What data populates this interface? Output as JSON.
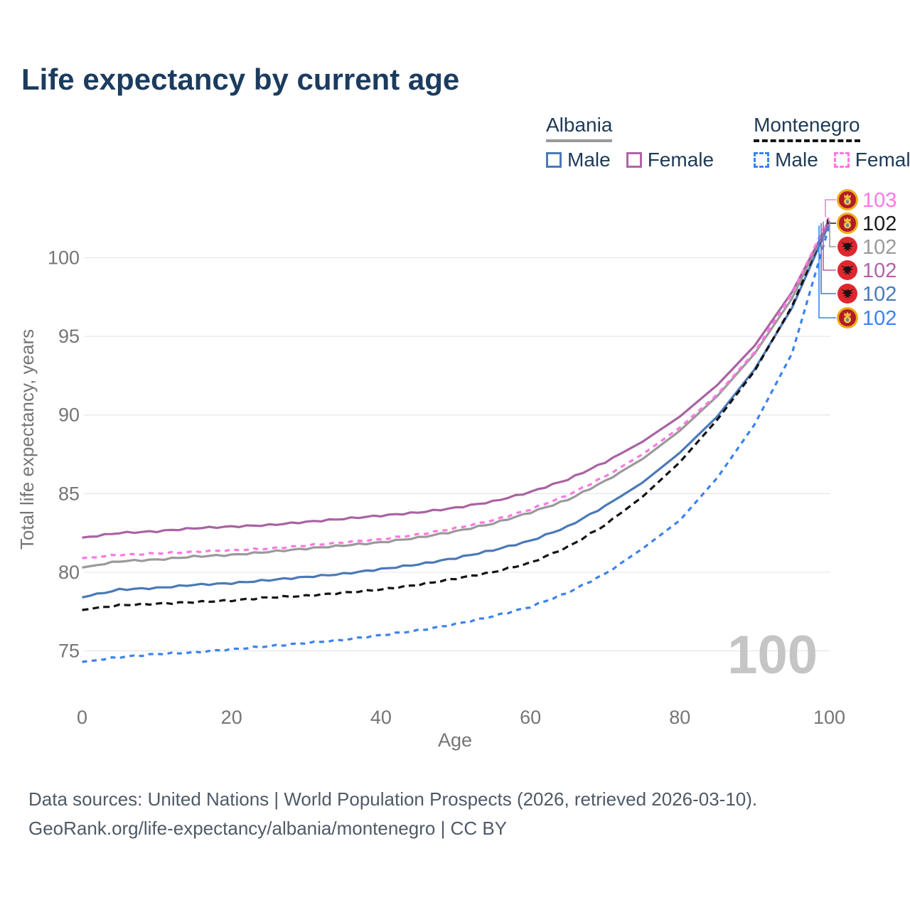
{
  "title": "Life expectancy by current age",
  "watermark": "100",
  "legend": {
    "groups": [
      {
        "name": "Albania",
        "underline_color": "#9a9a9a",
        "line_style": "solid",
        "items": [
          {
            "label": "Male",
            "color": "#4b79b9"
          },
          {
            "label": "Female",
            "color": "#b164a8"
          }
        ]
      },
      {
        "name": "Montenegro",
        "underline_color": "#141414",
        "line_style": "dashed",
        "items": [
          {
            "label": "Male",
            "color": "#3b82ee"
          },
          {
            "label": "Female",
            "color": "#ff77e2"
          }
        ]
      }
    ]
  },
  "footer": {
    "line1": "Data sources: United Nations | World Population Prospects (2026, retrieved 2026-03-10).",
    "line2": "GeoRank.org/life-expectancy/albania/montenegro | CC BY"
  },
  "chart_data": {
    "type": "line",
    "title": "Life expectancy by current age",
    "xlabel": "Age",
    "ylabel": "Total life expectancy, years",
    "x_ticks": [
      0,
      20,
      40,
      60,
      80,
      100
    ],
    "y_ticks": [
      75,
      80,
      85,
      90,
      95,
      100
    ],
    "xlim": [
      0,
      100
    ],
    "ylim": [
      73,
      104.5
    ],
    "grid": "horizontal-only",
    "legend_position": "top-right",
    "ages": [
      0,
      5,
      10,
      15,
      20,
      25,
      30,
      35,
      40,
      45,
      50,
      55,
      60,
      65,
      70,
      75,
      80,
      85,
      90,
      95,
      100
    ],
    "series": [
      {
        "id": "montenegro-male",
        "name": "Montenegro Male",
        "country": "Montenegro",
        "sex": "Male",
        "color": "#3b82ee",
        "dash": "dashed",
        "values": [
          74.3,
          74.6,
          74.8,
          74.9,
          75.1,
          75.3,
          75.5,
          75.7,
          76.0,
          76.3,
          76.7,
          77.2,
          77.8,
          78.7,
          79.9,
          81.5,
          83.3,
          86.0,
          89.4,
          93.9,
          102.05
        ]
      },
      {
        "id": "albania-male",
        "name": "Albania Male",
        "country": "Albania",
        "sex": "Male",
        "color": "#4b79b9",
        "dash": "solid",
        "values": [
          78.4,
          78.9,
          79.0,
          79.2,
          79.3,
          79.5,
          79.7,
          79.9,
          80.2,
          80.5,
          80.9,
          81.4,
          82.0,
          82.9,
          84.2,
          85.7,
          87.6,
          89.9,
          92.9,
          96.8,
          102.2
        ]
      },
      {
        "id": "montenegro-both",
        "name": "Montenegro",
        "country": "Montenegro",
        "sex": "Both",
        "color": "#141414",
        "dash": "dashed",
        "values": [
          77.6,
          77.9,
          78.0,
          78.1,
          78.2,
          78.4,
          78.5,
          78.7,
          78.9,
          79.2,
          79.6,
          80.0,
          80.6,
          81.6,
          83.0,
          84.8,
          87.0,
          89.7,
          92.8,
          96.9,
          102.45
        ]
      },
      {
        "id": "albania-both",
        "name": "Albania",
        "country": "Albania",
        "sex": "Both",
        "color": "#9a9a9a",
        "dash": "solid",
        "values": [
          80.3,
          80.7,
          80.8,
          81.0,
          81.1,
          81.3,
          81.5,
          81.7,
          81.9,
          82.2,
          82.6,
          83.1,
          83.8,
          84.6,
          85.8,
          87.2,
          89.0,
          91.2,
          93.9,
          97.4,
          102.35
        ]
      },
      {
        "id": "albania-female",
        "name": "Albania Female",
        "country": "Albania",
        "sex": "Female",
        "color": "#a963a3",
        "dash": "solid",
        "values": [
          82.2,
          82.5,
          82.6,
          82.8,
          82.9,
          83.0,
          83.2,
          83.4,
          83.6,
          83.8,
          84.1,
          84.5,
          85.1,
          85.9,
          87.0,
          88.3,
          89.9,
          91.9,
          94.4,
          97.8,
          102.3
        ]
      },
      {
        "id": "montenegro-female",
        "name": "Montenegro Female",
        "country": "Montenegro",
        "sex": "Female",
        "color": "#ff77e2",
        "dash": "dashed",
        "values": [
          80.9,
          81.1,
          81.2,
          81.3,
          81.4,
          81.5,
          81.7,
          81.9,
          82.1,
          82.4,
          82.8,
          83.3,
          84.0,
          84.9,
          86.1,
          87.5,
          89.2,
          91.3,
          94.0,
          97.7,
          102.6
        ]
      }
    ],
    "end_labels": [
      {
        "series": "montenegro-female",
        "text": "103",
        "color": "#ff77e2",
        "flag": "montenegro"
      },
      {
        "series": "montenegro-both",
        "text": "102",
        "color": "#1a1a1a",
        "flag": "montenegro"
      },
      {
        "series": "albania-both",
        "text": "102",
        "color": "#9a9a9a",
        "flag": "albania"
      },
      {
        "series": "albania-female",
        "text": "102",
        "color": "#b164a8",
        "flag": "albania"
      },
      {
        "series": "albania-male",
        "text": "102",
        "color": "#4b79b9",
        "flag": "albania"
      },
      {
        "series": "montenegro-male",
        "text": "102",
        "color": "#3b82ee",
        "flag": "montenegro"
      }
    ]
  }
}
